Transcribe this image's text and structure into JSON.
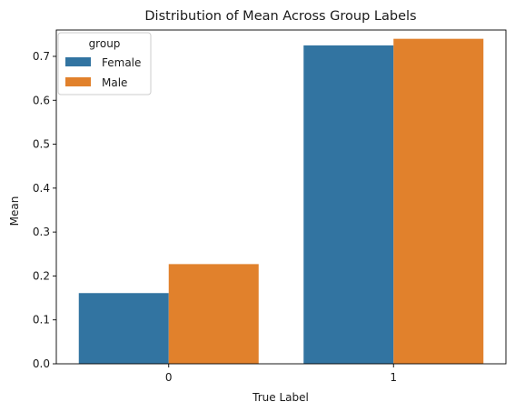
{
  "chart_data": {
    "type": "bar",
    "title": "Distribution of Mean Across Group Labels",
    "xlabel": "True Label",
    "ylabel": "Mean",
    "categories": [
      "0",
      "1"
    ],
    "ylim": [
      0,
      0.76
    ],
    "yticks": [
      0.0,
      0.1,
      0.2,
      0.3,
      0.4,
      0.5,
      0.6,
      0.7
    ],
    "ytick_labels": [
      "0.0",
      "0.1",
      "0.2",
      "0.3",
      "0.4",
      "0.5",
      "0.6",
      "0.7"
    ],
    "grid": false,
    "legend": {
      "title": "group",
      "placement": "top-left"
    },
    "series": [
      {
        "name": "Female",
        "color": "#3274a1",
        "values": [
          0.161,
          0.725
        ]
      },
      {
        "name": "Male",
        "color": "#e1812c",
        "values": [
          0.227,
          0.74
        ]
      }
    ]
  }
}
